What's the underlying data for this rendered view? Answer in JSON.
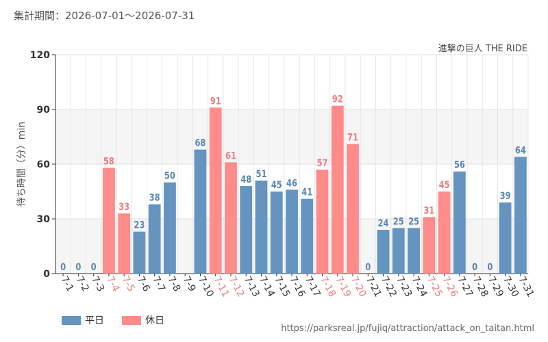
{
  "header": {
    "period": "集計期間：2026-07-01～2026-07-31",
    "attraction": "進撃の巨人 THE RIDE"
  },
  "footer": {
    "source_url": "https://parksreal.jp/fujiq/attraction/attack_on_taitan.html"
  },
  "legend": [
    {
      "label": "平日",
      "color": "#6494bf"
    },
    {
      "label": "休日",
      "color": "#ff8b8b"
    }
  ],
  "chart_data": {
    "type": "bar",
    "ylabel": "待ち時間（分）min",
    "ylim": [
      0,
      120
    ],
    "yticks": [
      0,
      30,
      60,
      90,
      120
    ],
    "grid": true,
    "legend_position": "bottom-left",
    "colors": {
      "weekday": "#6494bf",
      "holiday": "#ff8b8b"
    },
    "categories": [
      "7-1",
      "7-2",
      "7-3",
      "7-4",
      "7-5",
      "7-6",
      "7-7",
      "7-8",
      "7-9",
      "7-10",
      "7-11",
      "7-12",
      "7-13",
      "7-14",
      "7-15",
      "7-16",
      "7-17",
      "7-18",
      "7-19",
      "7-20",
      "7-21",
      "7-22",
      "7-23",
      "7-24",
      "7-25",
      "7-26",
      "7-27",
      "7-28",
      "7-29",
      "7-30",
      "7-31"
    ],
    "values": [
      0,
      0,
      0,
      58,
      33,
      23,
      38,
      50,
      null,
      68,
      91,
      61,
      48,
      51,
      45,
      46,
      41,
      57,
      92,
      71,
      0,
      24,
      25,
      25,
      31,
      45,
      56,
      0,
      0,
      39,
      64
    ],
    "day_type": [
      "平日",
      "平日",
      "平日",
      "休日",
      "休日",
      "平日",
      "平日",
      "平日",
      "平日",
      "平日",
      "休日",
      "休日",
      "平日",
      "平日",
      "平日",
      "平日",
      "平日",
      "休日",
      "休日",
      "休日",
      "平日",
      "平日",
      "平日",
      "平日",
      "休日",
      "休日",
      "平日",
      "平日",
      "平日",
      "平日",
      "平日"
    ]
  }
}
